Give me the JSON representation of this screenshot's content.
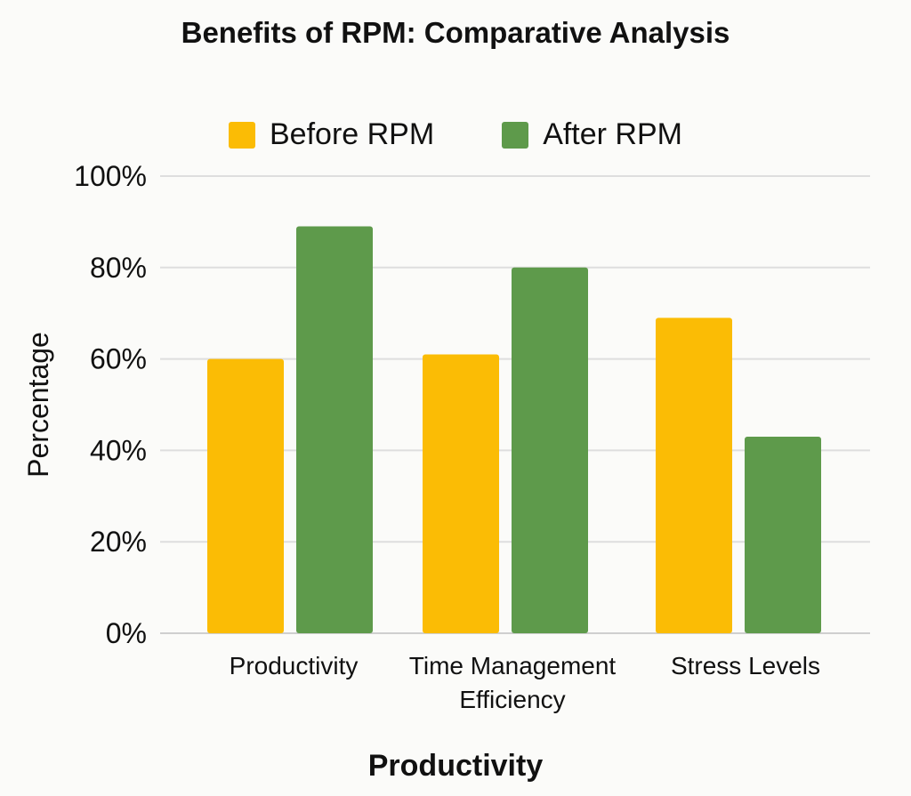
{
  "chart_data": {
    "type": "bar",
    "title": "Benefits of RPM: Comparative Analysis",
    "xlabel": "Productivity",
    "ylabel": "Percentage",
    "categories": [
      [
        "Productivity"
      ],
      [
        "Time Management",
        "Efficiency"
      ],
      [
        "Stress Levels"
      ]
    ],
    "series": [
      {
        "name": "Before RPM",
        "values": [
          60,
          61,
          69
        ],
        "color": "#fbbc05"
      },
      {
        "name": "After RPM",
        "values": [
          89,
          80,
          43
        ],
        "color": "#5e9a4b"
      }
    ],
    "ylim": [
      0,
      100
    ],
    "yticks": [
      0,
      20,
      40,
      60,
      80,
      100
    ],
    "ytick_suffix": "%",
    "grid": true,
    "legend_position": "top-center"
  }
}
